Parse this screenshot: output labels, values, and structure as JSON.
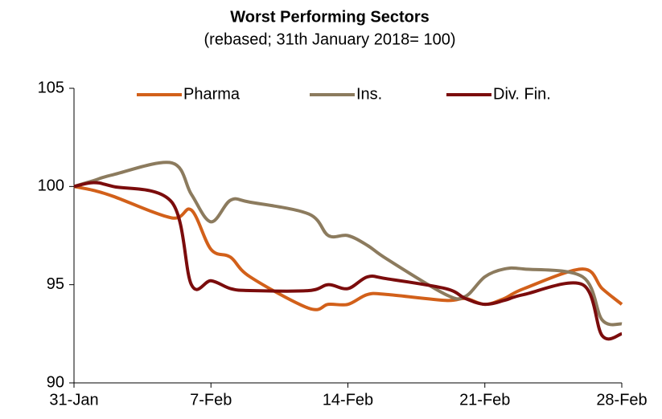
{
  "chart_data": {
    "type": "line",
    "title": "Worst Performing Sectors",
    "subtitle": "(rebased; 31th January 2018= 100)",
    "x": [
      0,
      1,
      2,
      5,
      6,
      7,
      8,
      9,
      12,
      13,
      14,
      15,
      16,
      19,
      20,
      21,
      22,
      23,
      26,
      27,
      28
    ],
    "xlim": [
      0,
      28
    ],
    "xticks": [
      {
        "value": 0,
        "label": "31-Jan"
      },
      {
        "value": 7,
        "label": "7-Feb"
      },
      {
        "value": 14,
        "label": "14-Feb"
      },
      {
        "value": 21,
        "label": "21-Feb"
      },
      {
        "value": 28,
        "label": "28-Feb"
      }
    ],
    "ylim": [
      90,
      105
    ],
    "yticks": [
      90,
      95,
      100,
      105
    ],
    "grid": false,
    "legend": "top",
    "series": [
      {
        "name": "Pharma",
        "color": "#d2601a",
        "values": [
          100,
          99.8,
          99.5,
          98.4,
          98.8,
          96.8,
          96.4,
          95.4,
          93.8,
          94.0,
          94.0,
          94.5,
          94.5,
          94.2,
          94.3,
          94.0,
          94.3,
          94.8,
          95.8,
          94.8,
          94.0
        ]
      },
      {
        "name": "Ins.",
        "color": "#8c7b5e",
        "values": [
          100,
          100.3,
          100.6,
          101.2,
          99.6,
          98.2,
          99.3,
          99.2,
          98.6,
          97.5,
          97.5,
          97.0,
          96.3,
          94.5,
          94.4,
          95.4,
          95.8,
          95.8,
          95.4,
          93.2,
          93.0
        ]
      },
      {
        "name": "Div. Fin.",
        "color": "#7b0c0c",
        "values": [
          100,
          100.2,
          100.0,
          99.2,
          95.0,
          95.2,
          94.8,
          94.7,
          94.7,
          95.0,
          94.8,
          95.4,
          95.3,
          94.8,
          94.3,
          94.0,
          94.2,
          94.5,
          95.0,
          92.4,
          92.5
        ]
      }
    ]
  }
}
